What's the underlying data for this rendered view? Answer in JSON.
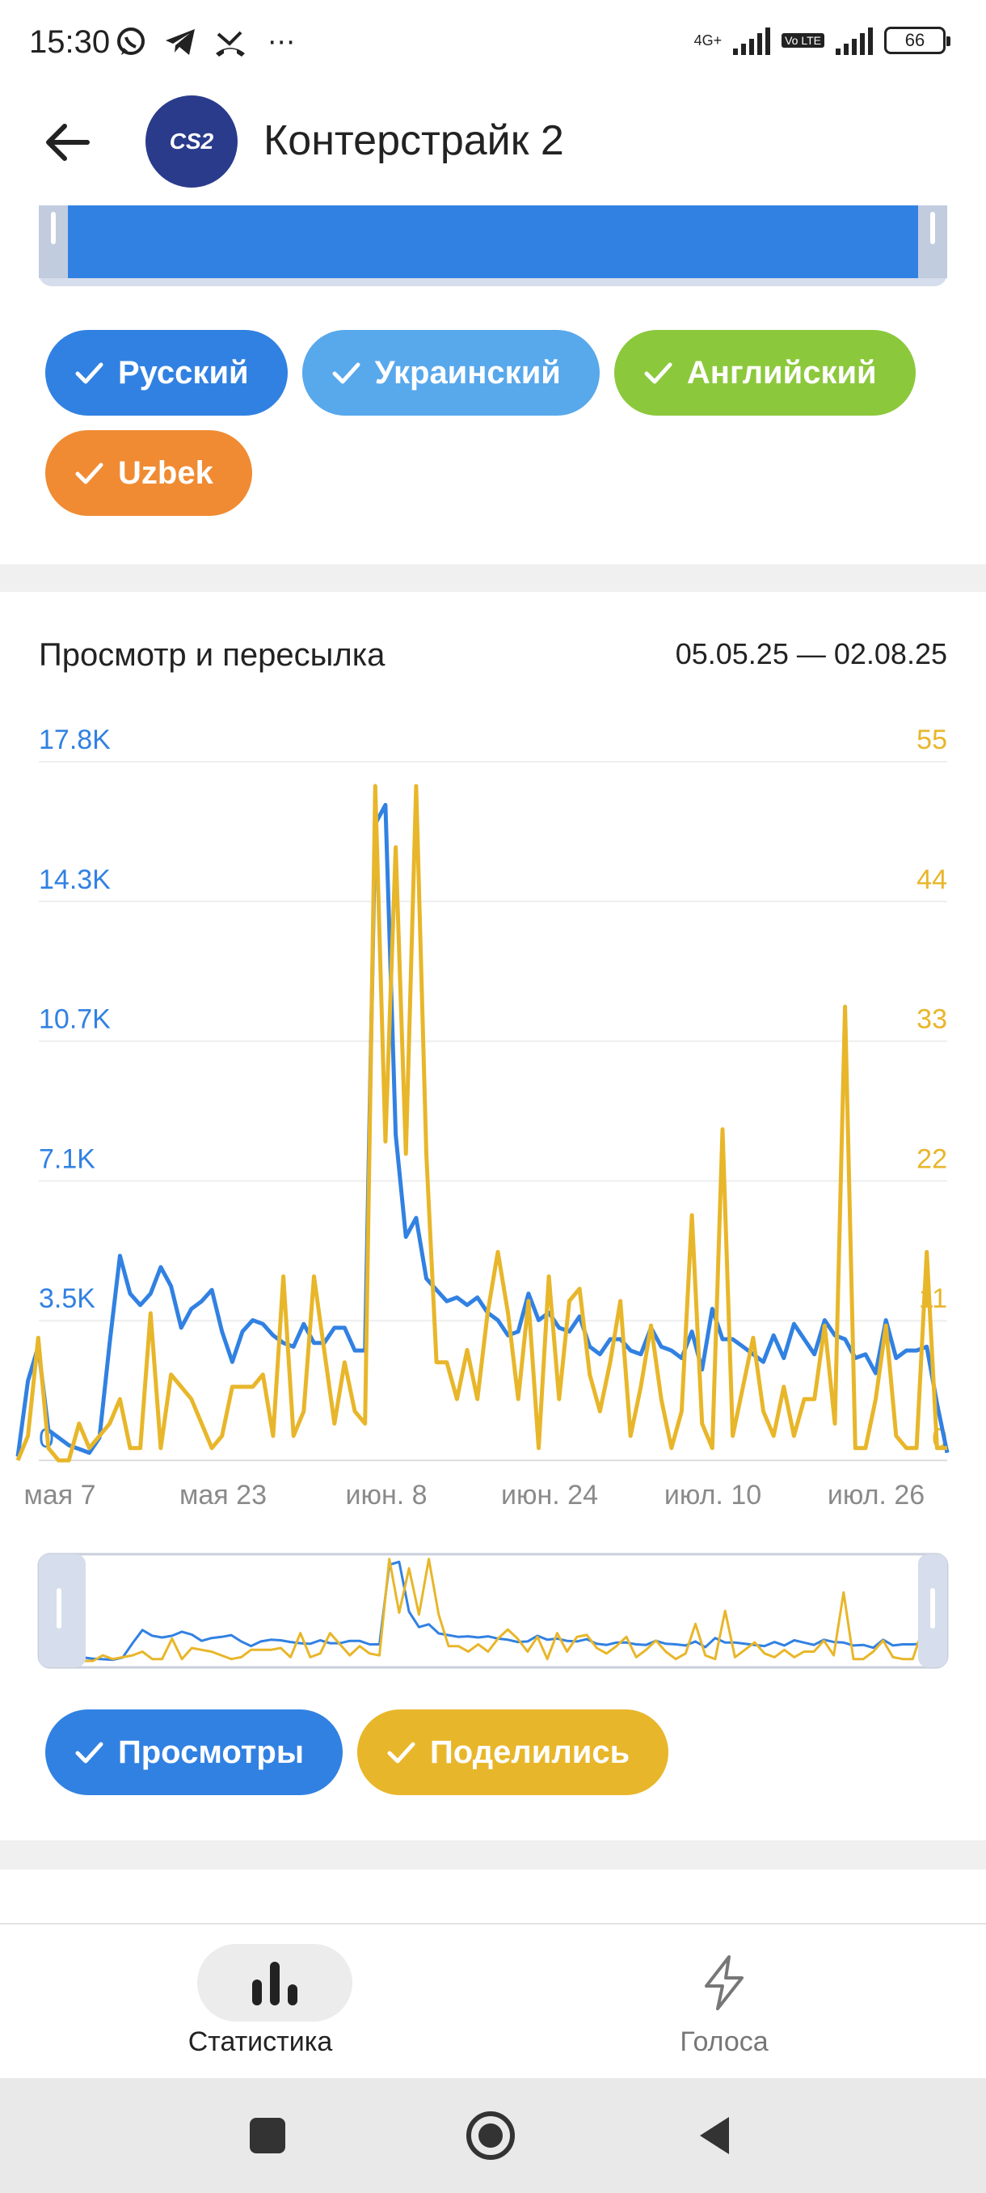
{
  "status_bar": {
    "time": "15:30",
    "network": "4G+",
    "volte": "Vo LTE",
    "battery": "66",
    "icons": [
      "whatsapp-icon",
      "telegram-icon",
      "missed-call-icon",
      "more-icon"
    ]
  },
  "app_bar": {
    "avatar_text": "CS2",
    "title": "Контерстрайк 2"
  },
  "language_filters": [
    {
      "label": "Русский",
      "color": "#3181e2",
      "checked": true
    },
    {
      "label": "Украинский",
      "color": "#58a8ec",
      "checked": true
    },
    {
      "label": "Английский",
      "color": "#8cc83c",
      "checked": true
    },
    {
      "label": "Uzbek",
      "color": "#f08b33",
      "checked": true
    }
  ],
  "chart_section": {
    "title": "Просмотр и пересылка",
    "date_range": "05.05.25 — 02.08.25",
    "left_axis_labels": [
      "0",
      "3.5K",
      "7.1K",
      "10.7K",
      "14.3K",
      "17.8K"
    ],
    "right_axis_labels": [
      "0",
      "11",
      "22",
      "33",
      "44",
      "55"
    ],
    "x_axis_labels": [
      "мая 7",
      "мая 23",
      "июн. 8",
      "июн. 24",
      "июл. 10",
      "июл. 26"
    ]
  },
  "chart_data": {
    "type": "line",
    "title": "Просмотр и пересылка",
    "x_start": "2025-05-05",
    "x_end": "2025-08-02",
    "x_ticks": [
      "мая 7",
      "мая 23",
      "июн. 8",
      "июн. 24",
      "июл. 10",
      "июл. 26"
    ],
    "series": [
      {
        "name": "Просмотры",
        "axis": "left",
        "color": "#3181e2",
        "ylim": [
          0,
          17800
        ],
        "values": [
          100,
          2100,
          3000,
          800,
          600,
          400,
          300,
          200,
          600,
          3100,
          5400,
          4400,
          4100,
          4400,
          5100,
          4600,
          3500,
          4000,
          4200,
          4500,
          3400,
          2600,
          3400,
          3700,
          3600,
          3300,
          3100,
          3000,
          3600,
          3100,
          3100,
          3500,
          3500,
          2900,
          2900,
          16800,
          17300,
          8600,
          5900,
          6400,
          4800,
          4500,
          4200,
          4300,
          4100,
          4300,
          3900,
          3700,
          3300,
          3400,
          4400,
          3700,
          3900,
          3500,
          3400,
          3800,
          3000,
          2800,
          3200,
          3200,
          2900,
          2800,
          3500,
          3000,
          2900,
          2700,
          3400,
          2400,
          4000,
          3200,
          3200,
          3000,
          2800,
          2600,
          3300,
          2700,
          3600,
          3200,
          2800,
          3700,
          3300,
          3200,
          2700,
          2800,
          2300,
          3700,
          2700,
          2900,
          2900,
          3000,
          1500,
          200
        ]
      },
      {
        "name": "Поделились",
        "axis": "right",
        "color": "#e8b62a",
        "ylim": [
          0,
          55
        ],
        "values": [
          0,
          2,
          10,
          1,
          0,
          0,
          3,
          1,
          2,
          3,
          5,
          1,
          1,
          12,
          1,
          7,
          6,
          5,
          3,
          1,
          2,
          6,
          6,
          6,
          7,
          2,
          15,
          2,
          4,
          15,
          9,
          3,
          8,
          4,
          3,
          55,
          26,
          50,
          25,
          55,
          25,
          8,
          8,
          5,
          9,
          5,
          12,
          17,
          12,
          5,
          13,
          1,
          15,
          5,
          13,
          14,
          7,
          4,
          8,
          13,
          2,
          6,
          11,
          5,
          1,
          4,
          20,
          3,
          1,
          27,
          2,
          6,
          10,
          4,
          2,
          6,
          2,
          5,
          5,
          11,
          3,
          37,
          1,
          1,
          5,
          11,
          2,
          1,
          1,
          17,
          1,
          1
        ]
      }
    ]
  },
  "series_toggles": [
    {
      "label": "Просмотры",
      "color": "#3181e2",
      "checked": true
    },
    {
      "label": "Поделились",
      "color": "#e8b62a",
      "checked": true
    }
  ],
  "bottom_nav": {
    "items": [
      {
        "label": "Статистика",
        "icon": "bar-chart-icon",
        "active": true
      },
      {
        "label": "Голоса",
        "icon": "lightning-icon",
        "active": false
      }
    ]
  },
  "system_nav": {
    "buttons": [
      "recents-square-icon",
      "home-circle-icon",
      "back-triangle-icon"
    ]
  }
}
